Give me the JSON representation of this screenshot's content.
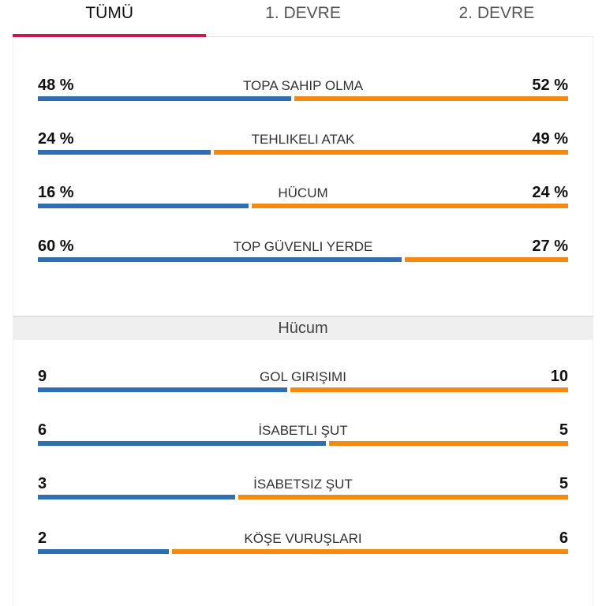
{
  "tabs": [
    {
      "label": "TÜMÜ",
      "active": true
    },
    {
      "label": "1. DEVRE"
    },
    {
      "label": "2. DEVRE"
    }
  ],
  "colors": {
    "home": "#2f6db5",
    "away": "#f58a0f",
    "accent": "#d0154a"
  },
  "general": [
    {
      "label": "TOPA SAHIP OLMA",
      "home": "48 %",
      "away": "52 %",
      "home_val": 48,
      "away_val": 52
    },
    {
      "label": "TEHLIKELI ATAK",
      "home": "24 %",
      "away": "49 %",
      "home_val": 24,
      "away_val": 49
    },
    {
      "label": "HÜCUM",
      "home": "16 %",
      "away": "24 %",
      "home_val": 16,
      "away_val": 24
    },
    {
      "label": "TOP GÜVENLI YERDE",
      "home": "60 %",
      "away": "27 %",
      "home_val": 60,
      "away_val": 27
    }
  ],
  "section_title": "Hücum",
  "attack": [
    {
      "label": "GOL GIRIŞIMI",
      "home": "9",
      "away": "10",
      "home_val": 9,
      "away_val": 10
    },
    {
      "label": "İSABETLI ŞUT",
      "home": "6",
      "away": "5",
      "home_val": 6,
      "away_val": 5
    },
    {
      "label": "İSABETSIZ ŞUT",
      "home": "3",
      "away": "5",
      "home_val": 3,
      "away_val": 5
    },
    {
      "label": "KÖŞE VURUŞLARI",
      "home": "2",
      "away": "6",
      "home_val": 2,
      "away_val": 6
    }
  ]
}
